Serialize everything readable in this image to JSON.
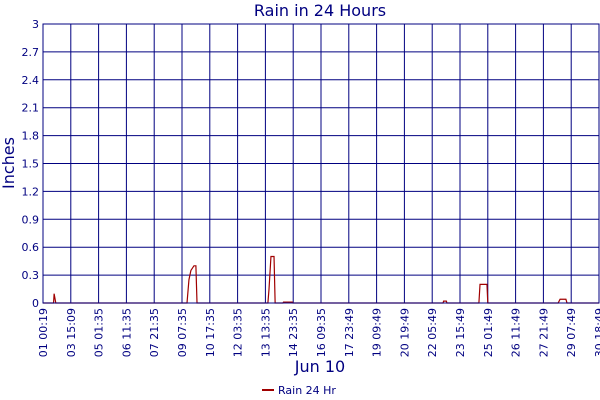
{
  "chart_data": {
    "type": "line",
    "title": "Rain in 24 Hours",
    "y_label": "Inches",
    "x_label": "Jun 10",
    "xlim": [
      0,
      20
    ],
    "xticks": [
      {
        "value": 0,
        "label": "01 00:19"
      },
      {
        "value": 1,
        "label": "03 15:09"
      },
      {
        "value": 2,
        "label": "05 01:35"
      },
      {
        "value": 3,
        "label": "06 11:35"
      },
      {
        "value": 4,
        "label": "07 21:35"
      },
      {
        "value": 5,
        "label": "09 07:35"
      },
      {
        "value": 6,
        "label": "10 17:35"
      },
      {
        "value": 7,
        "label": "12 03:35"
      },
      {
        "value": 8,
        "label": "13 13:35"
      },
      {
        "value": 9,
        "label": "14 23:35"
      },
      {
        "value": 10,
        "label": "16 09:35"
      },
      {
        "value": 11,
        "label": "17 23:49"
      },
      {
        "value": 12,
        "label": "19 09:49"
      },
      {
        "value": 13,
        "label": "20 19:49"
      },
      {
        "value": 14,
        "label": "22 05:49"
      },
      {
        "value": 15,
        "label": "23 15:49"
      },
      {
        "value": 16,
        "label": "25 01:49"
      },
      {
        "value": 17,
        "label": "26 11:49"
      },
      {
        "value": 18,
        "label": "27 21:49"
      },
      {
        "value": 19,
        "label": "29 07:49"
      },
      {
        "value": 20,
        "label": "30 18:49"
      }
    ],
    "ylim": [
      0,
      3
    ],
    "yticks": [
      0,
      0.3,
      0.6,
      0.9,
      1.2,
      1.5,
      1.8,
      2.1,
      2.4,
      2.7,
      3
    ],
    "grid": true,
    "x": [
      0,
      0.38,
      0.4,
      0.43,
      0.46,
      5.18,
      5.25,
      5.32,
      5.43,
      5.5,
      5.54,
      8.09,
      8.13,
      8.2,
      8.31,
      8.35,
      8.63,
      8.65,
      8.97,
      8.99,
      14.39,
      14.41,
      14.51,
      14.53,
      15.68,
      15.72,
      15.97,
      16.0,
      18.53,
      18.6,
      18.81,
      18.85,
      20
    ],
    "series": [
      {
        "name": "Rain 24 Hr",
        "color": "#a00000",
        "values": [
          0,
          0,
          0.1,
          0.05,
          0,
          0,
          0.25,
          0.35,
          0.4,
          0.4,
          0,
          0,
          0.15,
          0.5,
          0.5,
          0,
          0,
          0.01,
          0.01,
          0,
          0,
          0.02,
          0.02,
          0,
          0,
          0.2,
          0.2,
          0,
          0,
          0.04,
          0.04,
          0,
          0
        ]
      }
    ],
    "legend": "bottom"
  }
}
